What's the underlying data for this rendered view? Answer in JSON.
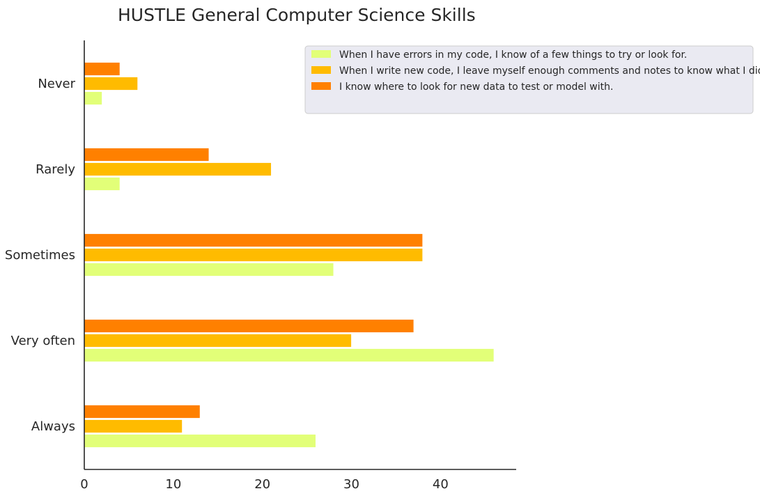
{
  "chart_data": {
    "type": "bar",
    "orientation": "horizontal",
    "title": "HUSTLE General Computer Science Skills",
    "xlabel": "",
    "ylabel": "",
    "categories": [
      "Always",
      "Very often",
      "Sometimes",
      "Rarely",
      "Never"
    ],
    "xlim": [
      0,
      48.5
    ],
    "xticks": [
      "0",
      "10",
      "20",
      "30",
      "40"
    ],
    "grid": false,
    "legend_position": "top-right",
    "series": [
      {
        "name": "When I have errors in my code, I know of a few things to try or look for.",
        "color": "#e2ff78",
        "values": [
          26,
          46,
          28,
          4,
          2
        ]
      },
      {
        "name": "When I write new code, I leave myself enough comments and notes to know what I did.",
        "color": "#ffbb00",
        "values": [
          11,
          30,
          38,
          21,
          6
        ]
      },
      {
        "name": "I know where to look for new data to test or model with.",
        "color": "#ff8000",
        "values": [
          13,
          37,
          38,
          14,
          4
        ]
      }
    ]
  }
}
